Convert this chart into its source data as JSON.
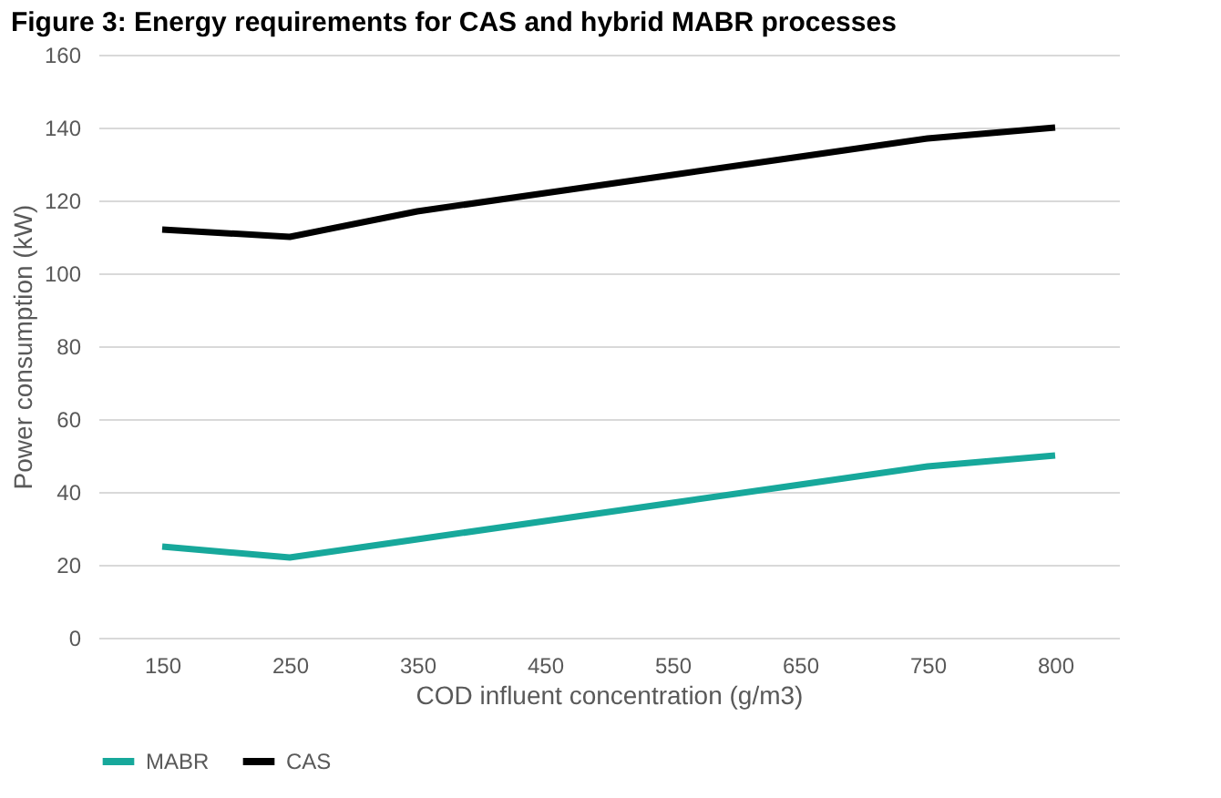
{
  "chart_data": {
    "type": "line",
    "title": "Figure 3: Energy requirements for CAS and hybrid MABR processes",
    "xlabel": "COD influent concentration (g/m3)",
    "ylabel": "Power consumption (kW)",
    "categories": [
      "150",
      "250",
      "350",
      "450",
      "550",
      "650",
      "750",
      "800"
    ],
    "series": [
      {
        "name": "MABR",
        "color": "#17a89b",
        "values": [
          25,
          22,
          27,
          32,
          37,
          42,
          47,
          50
        ]
      },
      {
        "name": "CAS",
        "color": "#000000",
        "values": [
          112,
          110,
          117,
          122,
          127,
          132,
          137,
          140
        ]
      }
    ],
    "ylim": [
      0,
      160
    ],
    "yticks": [
      0,
      20,
      40,
      60,
      80,
      100,
      120,
      140,
      160
    ],
    "grid": "y",
    "legend": "bottom",
    "marker": "none",
    "line_style": "solid"
  }
}
